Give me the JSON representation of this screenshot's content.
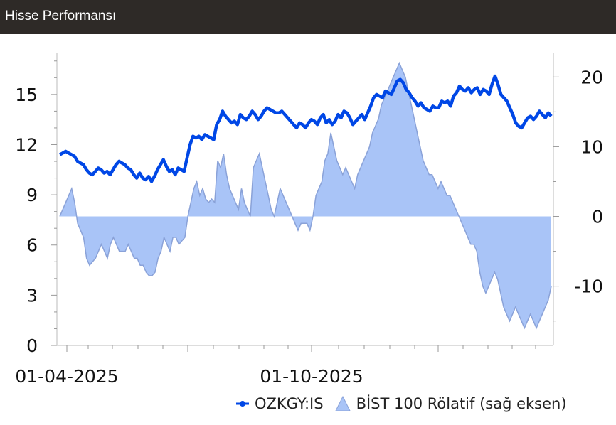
{
  "header": {
    "title": "Hisse Performansı"
  },
  "chart_data": {
    "type": "line",
    "x_labels": [
      "01-04-2025",
      "01-10-2025"
    ],
    "y_left": {
      "ticks": [
        0,
        3,
        6,
        9,
        12,
        15
      ],
      "range": [
        0,
        17.5
      ]
    },
    "y_right": {
      "ticks": [
        -10,
        0,
        10,
        20
      ],
      "range": [
        -18.5,
        23.5
      ]
    },
    "grid": false,
    "legend_position": "bottom-right",
    "series": [
      {
        "name": "OZKGY:IS",
        "type": "line",
        "axis": "left",
        "color": "#0047e6",
        "values": [
          11.4,
          11.5,
          11.6,
          11.5,
          11.4,
          11.3,
          11.0,
          10.9,
          10.8,
          10.5,
          10.3,
          10.2,
          10.4,
          10.6,
          10.5,
          10.3,
          10.4,
          10.2,
          10.5,
          10.8,
          11.0,
          10.9,
          10.8,
          10.6,
          10.5,
          10.2,
          10.0,
          10.3,
          10.0,
          9.9,
          10.1,
          9.8,
          10.1,
          10.5,
          10.8,
          11.1,
          10.7,
          10.4,
          10.5,
          10.2,
          10.6,
          10.5,
          10.4,
          11.2,
          12.0,
          12.5,
          12.4,
          12.5,
          12.3,
          12.6,
          12.5,
          12.4,
          12.3,
          13.2,
          13.5,
          14.0,
          13.7,
          13.5,
          13.3,
          13.4,
          13.2,
          13.8,
          13.6,
          13.5,
          13.7,
          14.0,
          13.8,
          13.5,
          13.7,
          14.0,
          14.2,
          14.1,
          14.0,
          13.9,
          13.9,
          14.0,
          13.8,
          13.6,
          13.4,
          13.2,
          13.0,
          13.3,
          13.2,
          13.0,
          13.3,
          13.5,
          13.4,
          13.2,
          13.6,
          13.8,
          13.3,
          13.5,
          13.2,
          13.4,
          13.8,
          13.6,
          14.0,
          13.9,
          13.6,
          13.2,
          13.4,
          13.6,
          13.8,
          13.5,
          13.9,
          14.3,
          14.8,
          15.0,
          14.9,
          14.8,
          15.2,
          15.1,
          15.0,
          15.4,
          15.8,
          15.9,
          15.7,
          15.3,
          15.1,
          14.8,
          14.6,
          14.3,
          14.5,
          14.2,
          14.1,
          14.0,
          14.3,
          14.2,
          14.2,
          14.6,
          14.5,
          14.6,
          14.3,
          14.9,
          15.1,
          15.5,
          15.3,
          15.2,
          15.4,
          15.1,
          15.3,
          15.4,
          15.0,
          15.3,
          15.2,
          15.0,
          15.6,
          16.1,
          15.6,
          15.0,
          14.8,
          14.6,
          14.2,
          13.8,
          13.3,
          13.1,
          13.0,
          13.3,
          13.6,
          13.7,
          13.5,
          13.7,
          14.0,
          13.8,
          13.6,
          13.9,
          13.7
        ]
      },
      {
        "name": "BİST 100 Rölatif (sağ eksen)",
        "type": "area",
        "axis": "right",
        "color": "#a9c4f7",
        "values": [
          0,
          1,
          2,
          3,
          4,
          2,
          -1,
          -2,
          -3,
          -6,
          -7,
          -6.5,
          -6,
          -5,
          -4,
          -5,
          -6,
          -4,
          -3,
          -4,
          -5,
          -5,
          -5,
          -4,
          -5,
          -6,
          -6,
          -7,
          -7,
          -8,
          -8.5,
          -8.5,
          -8,
          -6,
          -5,
          -3,
          -4,
          -5,
          -3,
          -3,
          -4,
          -3.5,
          -3,
          0,
          2,
          4,
          5,
          3,
          4,
          2.5,
          2,
          2.5,
          2,
          8,
          7,
          9,
          6,
          4,
          3,
          2,
          1,
          4,
          2,
          1,
          0,
          7,
          8,
          9,
          7,
          5,
          3,
          1,
          0,
          2,
          4,
          3,
          2,
          1,
          0,
          -1,
          -2,
          -1,
          -1,
          -1,
          -2,
          0,
          3,
          4,
          5,
          8,
          9,
          12,
          10,
          8,
          7,
          6,
          7,
          6,
          5,
          4,
          6,
          7,
          8,
          9,
          10,
          12,
          13,
          14,
          16,
          17,
          18,
          19,
          20,
          21,
          22,
          21,
          20,
          18,
          16,
          14,
          12,
          10,
          8,
          7,
          6,
          6,
          5,
          4,
          5,
          4,
          3,
          3,
          2,
          1,
          0,
          -1,
          -2,
          -3,
          -4,
          -4,
          -5,
          -8,
          -10,
          -11,
          -10,
          -9,
          -8,
          -9,
          -11,
          -13,
          -14,
          -15,
          -14,
          -13,
          -14,
          -15,
          -16,
          -15,
          -14,
          -15,
          -16,
          -15,
          -14,
          -13,
          -12,
          -10
        ]
      }
    ]
  }
}
